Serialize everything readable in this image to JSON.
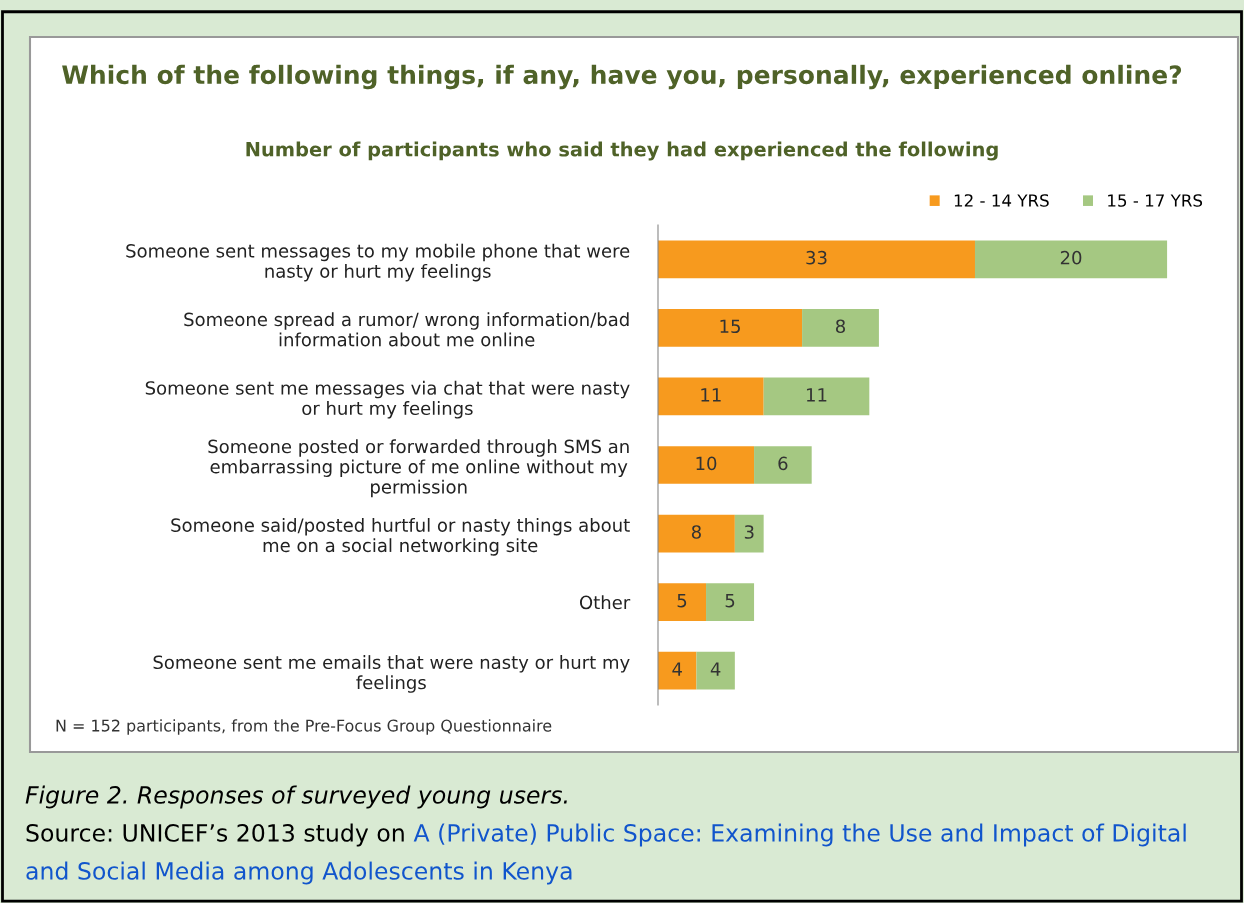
{
  "chart_data": {
    "type": "bar",
    "orientation": "horizontal",
    "stacked": true,
    "title": "Which of the following things, if any, have you, personally, experienced online?",
    "subtitle": "Number of participants who said they had experienced the following",
    "categories": [
      "Someone sent messages to my mobile phone that were nasty or hurt my feelings",
      "Someone spread a rumor/ wrong information/bad information about me online",
      "Someone sent me messages via chat that were nasty or hurt my feelings",
      "Someone posted or forwarded through SMS an embarrassing picture of me online without my permission",
      "Someone said/posted hurtful or nasty things about me on a social networking site",
      "Other",
      "Someone sent me emails that were nasty or hurt my feelings"
    ],
    "series": [
      {
        "name": "12 - 14 YRS",
        "color": "#f79a1e",
        "values": [
          33,
          15,
          11,
          10,
          8,
          5,
          4
        ]
      },
      {
        "name": "15 - 17 YRS",
        "color": "#a5c882",
        "values": [
          20,
          8,
          11,
          6,
          3,
          5,
          4
        ]
      }
    ],
    "data_labels": true,
    "legend": "top right",
    "grid": false,
    "tick_labels": "y",
    "annotations": [
      "N = 152 participants, from the Pre-Focus Group Questionnaire",
      "Figure 2. Responses of surveyed young users.",
      "Source: UNICEF’s 2013 study on",
      "A (Private) Public Space: Examining the Use and Impact of Digital and Social Media among Adolescents in Kenya"
    ]
  }
}
